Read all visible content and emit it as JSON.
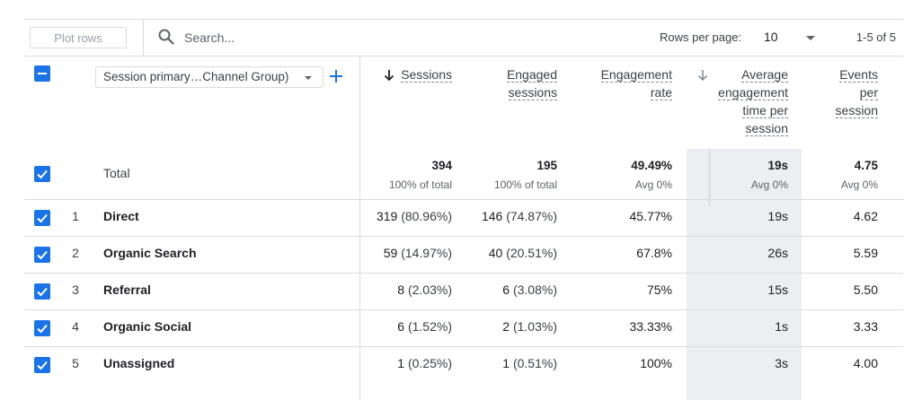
{
  "toolbar": {
    "plot_rows_label": "Plot rows",
    "search_placeholder": "Search...",
    "rows_per_page_label": "Rows per page:",
    "rows_per_page_value": "10",
    "range_text": "1-5 of 5"
  },
  "dimension": {
    "label": "Session primary…Channel Group)"
  },
  "columns": [
    {
      "key": "sessions",
      "label_lines": [
        "Sessions"
      ],
      "sorted": true
    },
    {
      "key": "engaged",
      "label_lines": [
        "Engaged",
        "sessions"
      ]
    },
    {
      "key": "rate",
      "label_lines": [
        "Engagement",
        "rate"
      ]
    },
    {
      "key": "avgtime",
      "label_lines": [
        "Average",
        "engagement",
        "time per",
        "session"
      ]
    },
    {
      "key": "events",
      "label_lines": [
        "Events",
        "per",
        "session"
      ]
    }
  ],
  "totals": {
    "label": "Total",
    "sessions": {
      "value": "394",
      "sub": "100% of total"
    },
    "engaged": {
      "value": "195",
      "sub": "100% of total"
    },
    "rate": {
      "value": "49.49%",
      "sub": "Avg 0%"
    },
    "avgtime": {
      "value": "19s",
      "sub": "Avg 0%"
    },
    "events": {
      "value": "4.75",
      "sub": "Avg 0%"
    }
  },
  "rows": [
    {
      "index": "1",
      "name": "Direct",
      "sessions": "319",
      "sessions_pct": "(80.96%)",
      "engaged": "146",
      "engaged_pct": "(74.87%)",
      "rate": "45.77%",
      "avgtime": "19s",
      "events": "4.62"
    },
    {
      "index": "2",
      "name": "Organic Search",
      "sessions": "59",
      "sessions_pct": "(14.97%)",
      "engaged": "40",
      "engaged_pct": "(20.51%)",
      "rate": "67.8%",
      "avgtime": "26s",
      "events": "5.59"
    },
    {
      "index": "3",
      "name": "Referral",
      "sessions": "8",
      "sessions_pct": "(2.03%)",
      "engaged": "6",
      "engaged_pct": "(3.08%)",
      "rate": "75%",
      "avgtime": "15s",
      "events": "5.50"
    },
    {
      "index": "4",
      "name": "Organic Social",
      "sessions": "6",
      "sessions_pct": "(1.52%)",
      "engaged": "2",
      "engaged_pct": "(1.03%)",
      "rate": "33.33%",
      "avgtime": "1s",
      "events": "3.33"
    },
    {
      "index": "5",
      "name": "Unassigned",
      "sessions": "1",
      "sessions_pct": "(0.25%)",
      "engaged": "1",
      "engaged_pct": "(0.51%)",
      "rate": "100%",
      "avgtime": "3s",
      "events": "4.00"
    }
  ],
  "colors": {
    "accent": "#1a73e8",
    "highlight_column": "#eceef1",
    "divider": "#dadce0"
  }
}
